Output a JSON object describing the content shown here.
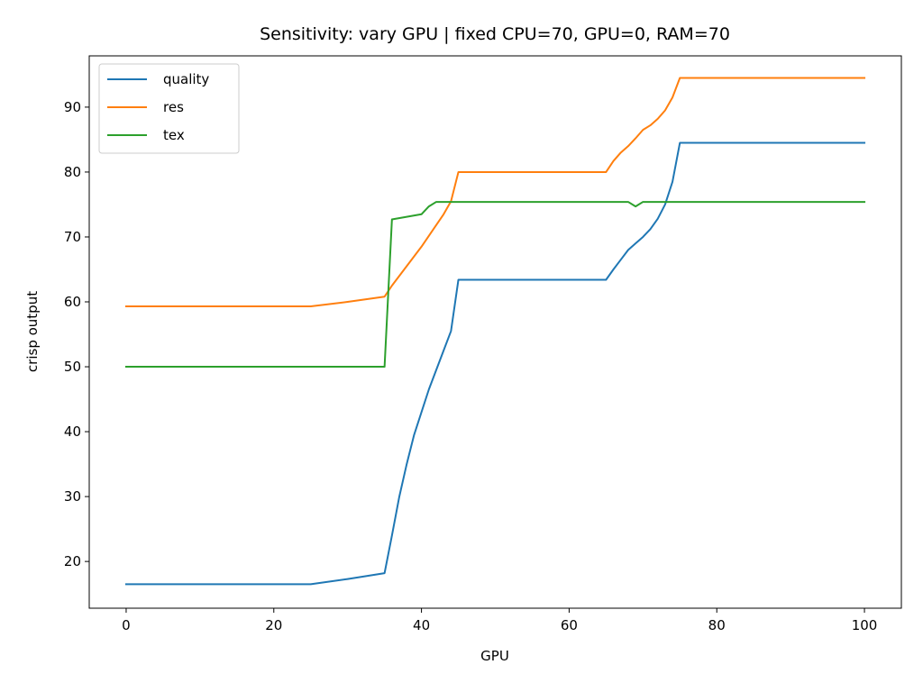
{
  "chart_data": {
    "type": "line",
    "title": "Sensitivity: vary GPU | fixed CPU=70, GPU=0, RAM=70",
    "xlabel": "GPU",
    "ylabel": "crisp output",
    "xlim": [
      -5,
      105
    ],
    "ylim": [
      12.8,
      97.9
    ],
    "xticks": [
      0,
      20,
      40,
      60,
      80,
      100
    ],
    "yticks": [
      20,
      30,
      40,
      50,
      60,
      70,
      80,
      90
    ],
    "grid": false,
    "legend_position": "upper left",
    "series": [
      {
        "name": "quality",
        "color": "#1f77b4",
        "points": [
          [
            0,
            16.5
          ],
          [
            25,
            16.5
          ],
          [
            30,
            17.3
          ],
          [
            35,
            18.2
          ],
          [
            36,
            24
          ],
          [
            37,
            30
          ],
          [
            38,
            35
          ],
          [
            39,
            39.5
          ],
          [
            40,
            43
          ],
          [
            41,
            46.5
          ],
          [
            42,
            49.5
          ],
          [
            43,
            52.5
          ],
          [
            44,
            55.5
          ],
          [
            45,
            63.4
          ],
          [
            65,
            63.4
          ],
          [
            66,
            65
          ],
          [
            67,
            66.5
          ],
          [
            68,
            68
          ],
          [
            69,
            69
          ],
          [
            70,
            70
          ],
          [
            71,
            71.2
          ],
          [
            72,
            72.8
          ],
          [
            73,
            75
          ],
          [
            74,
            78.5
          ],
          [
            75,
            84.5
          ],
          [
            100,
            84.5
          ]
        ]
      },
      {
        "name": "res",
        "color": "#ff7f0e",
        "points": [
          [
            0,
            59.3
          ],
          [
            25,
            59.3
          ],
          [
            30,
            60
          ],
          [
            35,
            60.8
          ],
          [
            36,
            62.5
          ],
          [
            40,
            68.5
          ],
          [
            43,
            73.5
          ],
          [
            44,
            75.5
          ],
          [
            45,
            80
          ],
          [
            65,
            80
          ],
          [
            66,
            81.7
          ],
          [
            67,
            83
          ],
          [
            68,
            84
          ],
          [
            69,
            85.2
          ],
          [
            70,
            86.5
          ],
          [
            71,
            87.2
          ],
          [
            72,
            88.2
          ],
          [
            73,
            89.5
          ],
          [
            74,
            91.5
          ],
          [
            75,
            94.5
          ],
          [
            100,
            94.5
          ]
        ]
      },
      {
        "name": "tex",
        "color": "#2ca02c",
        "points": [
          [
            0,
            50
          ],
          [
            35,
            50
          ],
          [
            36,
            72.7
          ],
          [
            40,
            73.5
          ],
          [
            41,
            74.7
          ],
          [
            42,
            75.4
          ],
          [
            68,
            75.4
          ],
          [
            69,
            74.7
          ],
          [
            70,
            75.4
          ],
          [
            100,
            75.4
          ]
        ]
      }
    ]
  }
}
